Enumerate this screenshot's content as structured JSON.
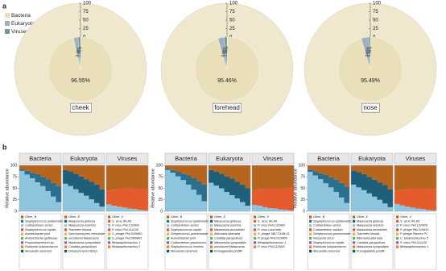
{
  "panel_a": {
    "label": "a",
    "legend": [
      {
        "name": "Bacteria",
        "color": "#e9dfb8"
      },
      {
        "name": "Eukaryota",
        "color": "#9db0bb"
      },
      {
        "name": "Viruses",
        "color": "#6f9a98"
      }
    ],
    "rticks": [
      0,
      25,
      50,
      75,
      100
    ],
    "plots": [
      {
        "site": "cheek",
        "values": [
          96.55,
          2.15,
          1.3
        ],
        "value_labels": [
          "96.55%",
          "2.15%",
          "1.30%"
        ]
      },
      {
        "site": "forehead",
        "values": [
          95.46,
          3.06,
          1.48
        ],
        "value_labels": [
          "95.46%",
          "3.06%",
          "1.48%"
        ]
      },
      {
        "site": "nose",
        "values": [
          95.49,
          3.63,
          0.88
        ],
        "value_labels": [
          "95.49%",
          "3.63%",
          "0.88%"
        ]
      }
    ]
  },
  "panel_b": {
    "label": "b",
    "y_label": "Relative abundance",
    "yticks": [
      0,
      25,
      50,
      75,
      100
    ],
    "groups": [
      {
        "panels": [
          {
            "title": "Bacteria",
            "series": [
              {
                "name": "Cutibacterium acnes",
                "color": "#8ec5de",
                "values": [
                  88,
                  80,
                  72,
                  63,
                  55,
                  44,
                  32,
                  20
                ]
              },
              {
                "name": "Staphylococcus epidermidis",
                "color": "#2b6f8f",
                "values": [
                  4,
                  8,
                  12,
                  18,
                  20,
                  26,
                  30,
                  35
                ]
              },
              {
                "name": "Other_B",
                "color": "#b5651d",
                "values": [
                  8,
                  12,
                  16,
                  19,
                  25,
                  30,
                  38,
                  45
                ]
              }
            ],
            "legend": [
              {
                "name": "Staphylococcus capitis",
                "color": "#d9534f"
              },
              {
                "name": "Acinetobacter junii",
                "color": "#f0ad4e"
              },
              {
                "name": "Acinetobacter guillouiae",
                "color": "#5cb85c"
              },
              {
                "name": "Propionibacterium sp.",
                "color": "#9b59b6"
              },
              {
                "name": "Ralstonia solanacearum",
                "color": "#e67e22"
              },
              {
                "name": "Moraxella osloensis",
                "color": "#1f4e79"
              }
            ]
          },
          {
            "title": "Eukaryota",
            "series": [
              {
                "name": "Malassezia restricta",
                "color": "#8ec5de",
                "values": [
                  60,
                  55,
                  48,
                  40,
                  34,
                  26,
                  18,
                  10
                ]
              },
              {
                "name": "Malassezia globosa",
                "color": "#1f5f7a",
                "values": [
                  30,
                  32,
                  34,
                  36,
                  36,
                  38,
                  40,
                  38
                ]
              },
              {
                "name": "Other_E",
                "color": "#b5651d",
                "values": [
                  10,
                  13,
                  18,
                  24,
                  30,
                  36,
                  42,
                  52
                ]
              }
            ],
            "legend": [
              {
                "name": "Trametes hirsuta",
                "color": "#d9534f"
              },
              {
                "name": "Saccharomyces cerevisiae",
                "color": "#f0ad4e"
              },
              {
                "name": "uncultured Malassezia",
                "color": "#5cb85c"
              },
              {
                "name": "Malassezia sympodialis",
                "color": "#9b59b6"
              },
              {
                "name": "Candida parapsilosis",
                "color": "#e67e22"
              },
              {
                "name": "Debaryomyces fabryi",
                "color": "#1f4e79"
              }
            ]
          },
          {
            "title": "Viruses",
            "series": [
              {
                "name": "P. virus PHL132N00",
                "color": "#8ec5de",
                "values": [
                  15,
                  12,
                  10,
                  8,
                  6,
                  5,
                  3,
                  2
                ]
              },
              {
                "name": "S. virus IPLA5",
                "color": "#e45b2e",
                "values": [
                  30,
                  35,
                  40,
                  42,
                  45,
                  45,
                  47,
                  48
                ]
              },
              {
                "name": "Other_V",
                "color": "#b5651d",
                "values": [
                  55,
                  53,
                  50,
                  50,
                  49,
                  50,
                  50,
                  50
                ]
              }
            ],
            "legend": [
              {
                "name": "P. virus PHL114L00",
                "color": "#d9534f"
              },
              {
                "name": "S. phage PHL010M00",
                "color": "#f0ad4e"
              },
              {
                "name": "S. phage PHL060M01",
                "color": "#5cb85c"
              },
              {
                "name": "Betapapillomavirus 1",
                "color": "#9b59b6"
              },
              {
                "name": "Betapapillomavirus 2",
                "color": "#e67e22"
              }
            ]
          }
        ]
      },
      {
        "panels": [
          {
            "title": "Bacteria",
            "series": [
              {
                "name": "Cutibacterium acnes",
                "color": "#8ec5de",
                "values": [
                  90,
                  84,
                  76,
                  68,
                  58,
                  47,
                  36,
                  22
                ]
              },
              {
                "name": "Staphylococcus epidermidis",
                "color": "#2b6f8f",
                "values": [
                  3,
                  6,
                  10,
                  14,
                  20,
                  25,
                  30,
                  36
                ]
              },
              {
                "name": "Other_B",
                "color": "#b5651d",
                "values": [
                  7,
                  10,
                  14,
                  18,
                  22,
                  28,
                  34,
                  42
                ]
              }
            ],
            "legend": [
              {
                "name": "Staphylococcus capitis",
                "color": "#d9534f"
              },
              {
                "name": "Streptococcus pneumoniae",
                "color": "#f0ad4e"
              },
              {
                "name": "Acinetobacter junii",
                "color": "#5cb85c"
              },
              {
                "name": "Cutibacterium granulosum",
                "color": "#9b59b6"
              },
              {
                "name": "Staphylococcus hominis",
                "color": "#e67e22"
              },
              {
                "name": "Moraxella osloensis",
                "color": "#1f4e79"
              }
            ]
          },
          {
            "title": "Eukaryota",
            "series": [
              {
                "name": "Malassezia restricta",
                "color": "#8ec5de",
                "values": [
                  62,
                  56,
                  50,
                  42,
                  35,
                  28,
                  20,
                  12
                ]
              },
              {
                "name": "Malassezia globosa",
                "color": "#1f5f7a",
                "values": [
                  28,
                  30,
                  32,
                  34,
                  36,
                  36,
                  38,
                  38
                ]
              },
              {
                "name": "Other_E",
                "color": "#b5651d",
                "values": [
                  10,
                  14,
                  18,
                  24,
                  29,
                  36,
                  42,
                  50
                ]
              }
            ],
            "legend": [
              {
                "name": "Malassezia arunalokei",
                "color": "#d9534f"
              },
              {
                "name": "Alternaria alternata",
                "color": "#f0ad4e"
              },
              {
                "name": "Candida parapsilosis",
                "color": "#5cb85c"
              },
              {
                "name": "Malassezia sympodialis",
                "color": "#9b59b6"
              },
              {
                "name": "uncultured Malassezia",
                "color": "#e67e22"
              },
              {
                "name": "Komagataella phaffii",
                "color": "#1f4e79"
              }
            ]
          },
          {
            "title": "Viruses",
            "series": [
              {
                "name": "P. virus PHL132N00",
                "color": "#8ec5de",
                "values": [
                  14,
                  12,
                  9,
                  7,
                  6,
                  4,
                  3,
                  2
                ]
              },
              {
                "name": "S. virus IPLA5",
                "color": "#e45b2e",
                "values": [
                  32,
                  36,
                  40,
                  43,
                  44,
                  46,
                  47,
                  49
                ]
              },
              {
                "name": "Other_V",
                "color": "#b5651d",
                "values": [
                  54,
                  52,
                  51,
                  50,
                  50,
                  50,
                  50,
                  49
                ]
              }
            ],
            "legend": [
              {
                "name": "P. virus Lauchelly",
                "color": "#d9534f"
              },
              {
                "name": "S. phage SBCTGAB 01",
                "color": "#f0ad4e"
              },
              {
                "name": "P. phage PHL010M00",
                "color": "#5cb85c"
              },
              {
                "name": "Betapapillomavirus 1",
                "color": "#9b59b6"
              },
              {
                "name": "P. virus PHL112N00",
                "color": "#e67e22"
              }
            ]
          }
        ]
      },
      {
        "panels": [
          {
            "title": "Bacteria",
            "series": [
              {
                "name": "Cutibacterium acnes",
                "color": "#8ec5de",
                "values": [
                  86,
                  78,
                  70,
                  61,
                  52,
                  42,
                  30,
                  18
                ]
              },
              {
                "name": "Staphylococcus epidermidis",
                "color": "#2b6f8f",
                "values": [
                  5,
                  9,
                  13,
                  18,
                  22,
                  27,
                  32,
                  36
                ]
              },
              {
                "name": "Other_B",
                "color": "#b5651d",
                "values": [
                  9,
                  13,
                  17,
                  21,
                  26,
                  31,
                  38,
                  46
                ]
              }
            ],
            "legend": [
              {
                "name": "Cutibacterium avidum",
                "color": "#d9534f"
              },
              {
                "name": "Streptococcus pneumoniae",
                "color": "#f0ad4e"
              },
              {
                "name": "Neisseria sicca",
                "color": "#5cb85c"
              },
              {
                "name": "Staphylococcus capitis",
                "color": "#9b59b6"
              },
              {
                "name": "Ralstonia solanacearum",
                "color": "#e67e22"
              },
              {
                "name": "Moraxella osloensis",
                "color": "#1f4e79"
              }
            ]
          },
          {
            "title": "Eukaryota",
            "series": [
              {
                "name": "Malassezia restricta",
                "color": "#8ec5de",
                "values": [
                  58,
                  52,
                  46,
                  39,
                  32,
                  25,
                  17,
                  9
                ]
              },
              {
                "name": "Malassezia globosa",
                "color": "#1f5f7a",
                "values": [
                  31,
                  33,
                  35,
                  36,
                  37,
                  38,
                  40,
                  39
                ]
              },
              {
                "name": "Other_E",
                "color": "#b5651d",
                "values": [
                  11,
                  15,
                  19,
                  25,
                  31,
                  37,
                  43,
                  52
                ]
              }
            ],
            "legend": [
              {
                "name": "Malassezia arunalokei",
                "color": "#d9534f"
              },
              {
                "name": "Trametes hirsuta",
                "color": "#f0ad4e"
              },
              {
                "name": "Alternaria alternata",
                "color": "#5cb85c"
              },
              {
                "name": "Candida parapsilosis",
                "color": "#9b59b6"
              },
              {
                "name": "Malassezia sympodialis",
                "color": "#e67e22"
              },
              {
                "name": "Komagataella phaffii",
                "color": "#1f4e79"
              }
            ]
          },
          {
            "title": "Viruses",
            "series": [
              {
                "name": "P. virus PHL132N00",
                "color": "#8ec5de",
                "values": [
                  16,
                  13,
                  10,
                  8,
                  6,
                  5,
                  3,
                  2
                ]
              },
              {
                "name": "S. virus IPLA5",
                "color": "#e45b2e",
                "values": [
                  29,
                  34,
                  39,
                  42,
                  44,
                  45,
                  46,
                  48
                ]
              },
              {
                "name": "Other_V",
                "color": "#b5651d",
                "values": [
                  55,
                  53,
                  51,
                  50,
                  50,
                  50,
                  51,
                  50
                ]
              }
            ],
            "legend": [
              {
                "name": "P. phage PAC1HM10",
                "color": "#d9534f"
              },
              {
                "name": "P. phage Pacnes P1",
                "color": "#f0ad4e"
              },
              {
                "name": "C. betaherpesvirus 5",
                "color": "#5cb85c"
              },
              {
                "name": "P. virus PHL114L00",
                "color": "#9b59b6"
              },
              {
                "name": "Betapapillomavirus 1",
                "color": "#e67e22"
              }
            ]
          }
        ]
      }
    ]
  }
}
